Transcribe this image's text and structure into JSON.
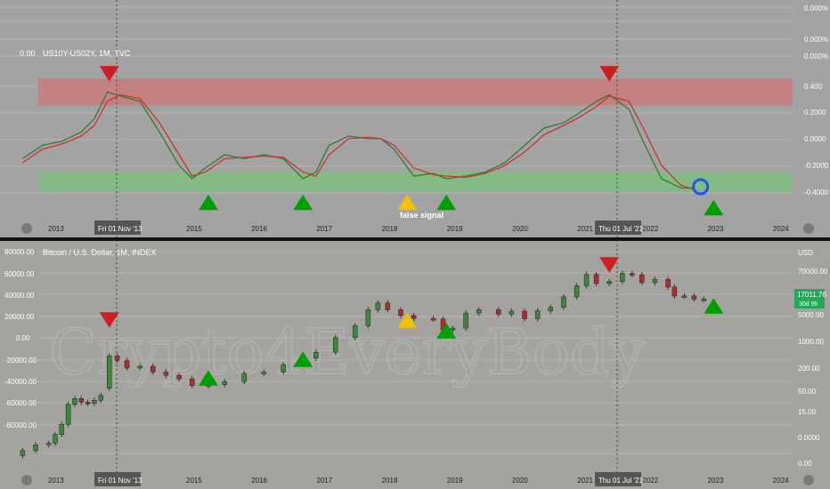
{
  "colors": {
    "background": "#9e9e9e",
    "resistance_band": "#c97b7b",
    "support_band": "#7fbf7f",
    "fast_line": "#2e7d32",
    "slow_line": "#d32f2f",
    "up_signal": "#00a000",
    "down_signal": "#cc1f1f",
    "false_signal": "#f2c200",
    "current_marker": "#2255ee",
    "bull_candle": "#3a8a3a",
    "bear_candle": "#b52a2a",
    "price_badge": "#26a65b"
  },
  "top_panel": {
    "title": "US10Y-US02Y, 1M, TVC",
    "left_value": "0.00",
    "right_axis_labels": [
      "0.000%",
      "0.000%",
      "0.000%",
      "0.400",
      "0.2000",
      "0.0000",
      "-0.2000",
      "-0.4000"
    ],
    "false_signal_label": "false signal"
  },
  "bottom_panel": {
    "title": "Bitcoin / U.S. Dollar, 1M, INDEX",
    "currency_label": "USD",
    "left_axis_labels": [
      "80000.00",
      "60000.00",
      "40000.00",
      "20000.00",
      "0.00",
      "-20000.00",
      "-40000.00",
      "-60000.00",
      "-80000.00"
    ],
    "right_axis_labels": [
      "70000.00",
      "17011.76",
      "5000.00",
      "1000.00",
      "200.00",
      "50.00",
      "15.00",
      "0.0000",
      "0.00"
    ],
    "price_badge": "17011.76",
    "price_badge_sub": "30d 9h",
    "watermark": "Crypto4EveryBody"
  },
  "x_axis": {
    "years": [
      "2013",
      "2015",
      "2016",
      "2017",
      "2018",
      "2019",
      "2020",
      "2021",
      "2022",
      "2023",
      "2024"
    ],
    "crosshair_left_label": "Fri 01 Nov '13",
    "crosshair_right_label": "Thu 01 Jul '21"
  },
  "chart_data": [
    {
      "type": "line",
      "title": "US10Y-US02Y, 1M, TVC",
      "x_unit": "year",
      "ylim": [
        -0.5,
        0.55
      ],
      "bands": [
        {
          "name": "resistance",
          "y": [
            0.25,
            0.45
          ]
        },
        {
          "name": "support",
          "y": [
            -0.4,
            -0.25
          ]
        }
      ],
      "series": [
        {
          "x": [
            2012.5,
            2012.8,
            2013.1,
            2013.4,
            2013.6,
            2013.8,
            2014.0,
            2014.3,
            2014.6,
            2014.9,
            2015.1,
            2015.3,
            2015.6,
            2015.9,
            2016.2,
            2016.5,
            2016.8,
            2017.0,
            2017.2,
            2017.5,
            2017.8,
            2018.0,
            2018.2,
            2018.5,
            2018.8,
            2019.0,
            2019.3,
            2019.6,
            2019.9,
            2020.2,
            2020.5,
            2020.8,
            2021.0,
            2021.3,
            2021.5,
            2021.8,
            2022.0,
            2022.3,
            2022.6,
            2022.8
          ],
          "values": [
            -0.15,
            -0.05,
            -0.02,
            0.05,
            0.15,
            0.35,
            0.32,
            0.28,
            0.05,
            -0.2,
            -0.3,
            -0.22,
            -0.12,
            -0.15,
            -0.12,
            -0.15,
            -0.3,
            -0.25,
            -0.05,
            0.02,
            0.0,
            0.0,
            -0.08,
            -0.28,
            -0.26,
            -0.3,
            -0.28,
            -0.25,
            -0.18,
            -0.05,
            0.08,
            0.12,
            0.18,
            0.28,
            0.33,
            0.22,
            0.0,
            -0.3,
            -0.37,
            -0.37
          ]
        },
        {
          "x": [
            2012.5,
            2012.8,
            2013.1,
            2013.4,
            2013.6,
            2013.8,
            2014.0,
            2014.3,
            2014.6,
            2014.9,
            2015.1,
            2015.3,
            2015.6,
            2015.9,
            2016.2,
            2016.5,
            2016.8,
            2017.0,
            2017.2,
            2017.5,
            2017.8,
            2018.0,
            2018.2,
            2018.5,
            2018.8,
            2019.0,
            2019.3,
            2019.6,
            2019.9,
            2020.2,
            2020.5,
            2020.8,
            2021.0,
            2021.3,
            2021.5,
            2021.8,
            2022.0,
            2022.3,
            2022.6,
            2022.8
          ],
          "values": [
            -0.18,
            -0.08,
            -0.04,
            0.02,
            0.1,
            0.28,
            0.33,
            0.3,
            0.12,
            -0.12,
            -0.28,
            -0.25,
            -0.15,
            -0.14,
            -0.13,
            -0.14,
            -0.25,
            -0.28,
            -0.12,
            0.0,
            0.01,
            0.0,
            -0.05,
            -0.22,
            -0.27,
            -0.28,
            -0.29,
            -0.26,
            -0.2,
            -0.1,
            0.03,
            0.1,
            0.15,
            0.24,
            0.32,
            0.28,
            0.1,
            -0.2,
            -0.35,
            -0.38
          ]
        }
      ],
      "signals": [
        {
          "kind": "down",
          "x": 2013.83,
          "y": 0.42
        },
        {
          "kind": "up",
          "x": 2015.35,
          "y": -0.43
        },
        {
          "kind": "up",
          "x": 2016.8,
          "y": -0.43
        },
        {
          "kind": "false",
          "x": 2018.4,
          "y": -0.43
        },
        {
          "kind": "up",
          "x": 2019.0,
          "y": -0.43
        },
        {
          "kind": "down",
          "x": 2021.5,
          "y": 0.42
        },
        {
          "kind": "up",
          "x": 2023.1,
          "y": -0.47
        }
      ],
      "current_marker": {
        "x": 2022.9,
        "y": -0.36
      }
    },
    {
      "type": "candlestick",
      "title": "Bitcoin / U.S. Dollar, 1M, INDEX",
      "x_unit": "year",
      "scale": "log",
      "ylim": [
        5,
        150000
      ],
      "candles": [
        {
          "x": 2012.5,
          "o": 7,
          "c": 9
        },
        {
          "x": 2012.7,
          "o": 9,
          "c": 12
        },
        {
          "x": 2012.9,
          "o": 12,
          "c": 13
        },
        {
          "x": 2013.0,
          "o": 13,
          "c": 20
        },
        {
          "x": 2013.1,
          "o": 20,
          "c": 33
        },
        {
          "x": 2013.2,
          "o": 33,
          "c": 90
        },
        {
          "x": 2013.3,
          "o": 90,
          "c": 120
        },
        {
          "x": 2013.4,
          "o": 120,
          "c": 100
        },
        {
          "x": 2013.5,
          "o": 100,
          "c": 95
        },
        {
          "x": 2013.6,
          "o": 95,
          "c": 110
        },
        {
          "x": 2013.7,
          "o": 110,
          "c": 140
        },
        {
          "x": 2013.83,
          "o": 200,
          "c": 1000
        },
        {
          "x": 2013.95,
          "o": 1000,
          "c": 800
        },
        {
          "x": 2014.1,
          "o": 800,
          "c": 550
        },
        {
          "x": 2014.3,
          "o": 550,
          "c": 600
        },
        {
          "x": 2014.5,
          "o": 600,
          "c": 450
        },
        {
          "x": 2014.7,
          "o": 450,
          "c": 380
        },
        {
          "x": 2014.9,
          "o": 380,
          "c": 320
        },
        {
          "x": 2015.1,
          "o": 320,
          "c": 230
        },
        {
          "x": 2015.35,
          "o": 230,
          "c": 240
        },
        {
          "x": 2015.6,
          "o": 240,
          "c": 280
        },
        {
          "x": 2015.9,
          "o": 280,
          "c": 420
        },
        {
          "x": 2016.2,
          "o": 420,
          "c": 450
        },
        {
          "x": 2016.5,
          "o": 450,
          "c": 650
        },
        {
          "x": 2016.8,
          "o": 650,
          "c": 900
        },
        {
          "x": 2017.0,
          "o": 900,
          "c": 1200
        },
        {
          "x": 2017.3,
          "o": 1200,
          "c": 2500
        },
        {
          "x": 2017.6,
          "o": 2500,
          "c": 4500
        },
        {
          "x": 2017.8,
          "o": 4500,
          "c": 10000
        },
        {
          "x": 2017.95,
          "o": 10000,
          "c": 14000
        },
        {
          "x": 2018.1,
          "o": 14000,
          "c": 10000
        },
        {
          "x": 2018.3,
          "o": 10000,
          "c": 7500
        },
        {
          "x": 2018.5,
          "o": 7500,
          "c": 6500
        },
        {
          "x": 2018.8,
          "o": 6500,
          "c": 6300
        },
        {
          "x": 2018.95,
          "o": 6300,
          "c": 3700
        },
        {
          "x": 2019.1,
          "o": 3700,
          "c": 4000
        },
        {
          "x": 2019.3,
          "o": 4000,
          "c": 8500
        },
        {
          "x": 2019.5,
          "o": 8500,
          "c": 10000
        },
        {
          "x": 2019.8,
          "o": 10000,
          "c": 8000
        },
        {
          "x": 2020.0,
          "o": 8000,
          "c": 9300
        },
        {
          "x": 2020.2,
          "o": 9300,
          "c": 6400
        },
        {
          "x": 2020.4,
          "o": 6400,
          "c": 9500
        },
        {
          "x": 2020.6,
          "o": 9500,
          "c": 11300
        },
        {
          "x": 2020.8,
          "o": 11300,
          "c": 19000
        },
        {
          "x": 2021.0,
          "o": 19000,
          "c": 33000
        },
        {
          "x": 2021.15,
          "o": 33000,
          "c": 58000
        },
        {
          "x": 2021.3,
          "o": 58000,
          "c": 37000
        },
        {
          "x": 2021.5,
          "o": 37000,
          "c": 41000
        },
        {
          "x": 2021.7,
          "o": 41000,
          "c": 61000
        },
        {
          "x": 2021.85,
          "o": 61000,
          "c": 57000
        },
        {
          "x": 2022.0,
          "o": 57000,
          "c": 38500
        },
        {
          "x": 2022.2,
          "o": 38500,
          "c": 45500
        },
        {
          "x": 2022.4,
          "o": 45500,
          "c": 31000
        },
        {
          "x": 2022.5,
          "o": 31000,
          "c": 19800
        },
        {
          "x": 2022.65,
          "o": 19800,
          "c": 20000
        },
        {
          "x": 2022.8,
          "o": 20000,
          "c": 17000
        },
        {
          "x": 2022.95,
          "o": 17000,
          "c": 17011.76
        }
      ],
      "signals": [
        {
          "kind": "down",
          "x": 2013.83
        },
        {
          "kind": "up",
          "x": 2015.35
        },
        {
          "kind": "up",
          "x": 2016.8
        },
        {
          "kind": "false",
          "x": 2018.4
        },
        {
          "kind": "up",
          "x": 2019.0
        },
        {
          "kind": "down",
          "x": 2021.5
        },
        {
          "kind": "up",
          "x": 2023.1
        }
      ]
    }
  ]
}
